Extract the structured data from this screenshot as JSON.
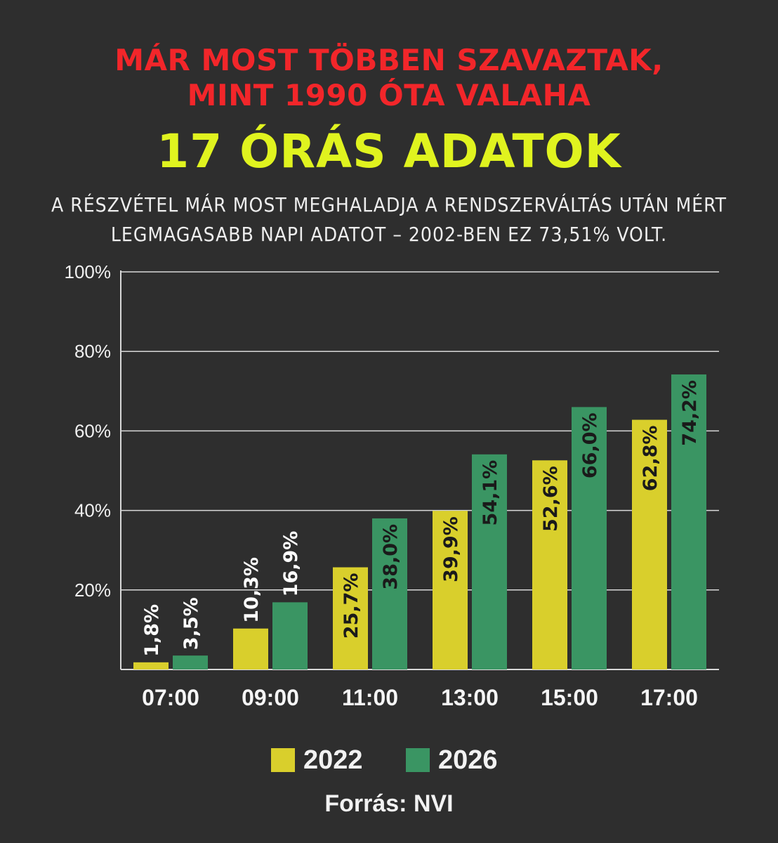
{
  "header": {
    "headline_line1": "MÁR MOST TÖBBEN SZAVAZTAK,",
    "headline_line2": "MINT 1990 ÓTA VALAHA",
    "title": "17 ÓRÁS ADATOK",
    "subtitle_line1": "A RÉSZVÉTEL MÁR MOST MEGHALADJA A RENDSZERVÁLTÁS UTÁN MÉRT",
    "subtitle_line2": "LEGMAGASABB NAPI ADATOT – 2002-BEN EZ 73,51% VOLT."
  },
  "colors": {
    "background": "#2e2e2e",
    "headline": "#f2262a",
    "title": "#e0f31f",
    "series_2022": "#d9cf2c",
    "series_2026": "#3a9563"
  },
  "chart_data": {
    "type": "bar",
    "categories": [
      "07:00",
      "09:00",
      "11:00",
      "13:00",
      "15:00",
      "17:00"
    ],
    "series": [
      {
        "name": "2022",
        "values": [
          1.8,
          10.3,
          25.7,
          39.9,
          52.6,
          62.8
        ],
        "labels": [
          "1,8%",
          "10,3%",
          "25,7%",
          "39,9%",
          "52,6%",
          "62,8%"
        ]
      },
      {
        "name": "2026",
        "values": [
          3.5,
          16.9,
          38.0,
          54.1,
          66.0,
          74.2
        ],
        "labels": [
          "3,5%",
          "16,9%",
          "38,0%",
          "54,1%",
          "66,0%",
          "74,2%"
        ]
      }
    ],
    "ylim": [
      0,
      100
    ],
    "yticks": [
      20,
      40,
      60,
      80,
      100
    ],
    "ytick_labels": [
      "20%",
      "40%",
      "60%",
      "80%",
      "100%"
    ],
    "grid": true,
    "legend_position": "bottom",
    "label_orientation": "vertical"
  },
  "footer": {
    "source": "Forrás: NVI"
  }
}
